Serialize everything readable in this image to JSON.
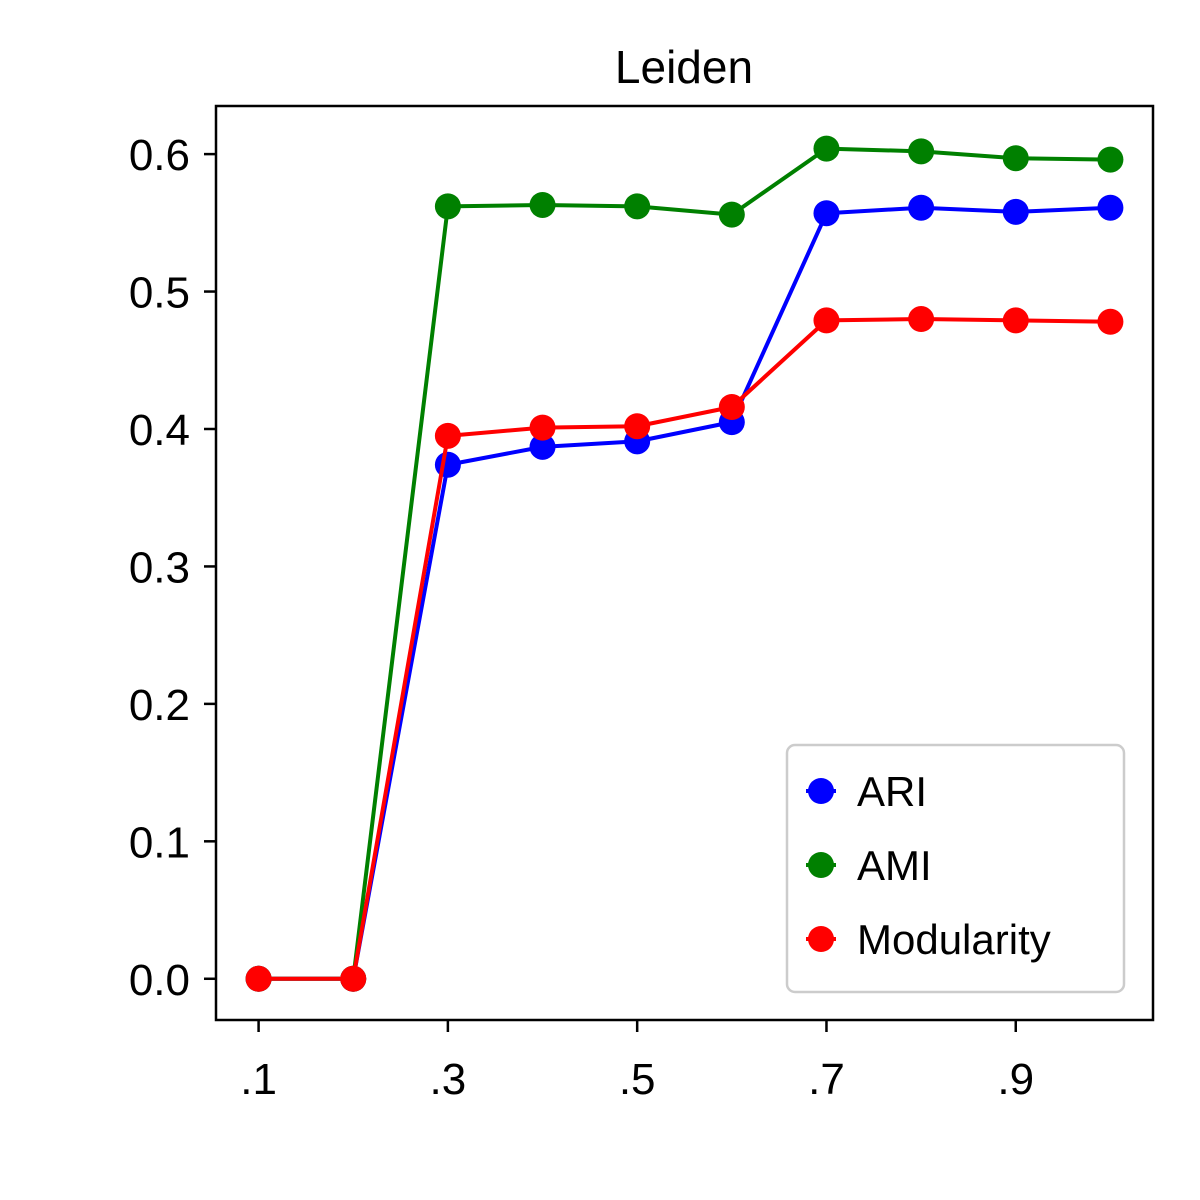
{
  "chart_data": {
    "type": "line",
    "title": "Leiden",
    "xlabel": "",
    "ylabel": "",
    "x": [
      0.1,
      0.2,
      0.3,
      0.4,
      0.5,
      0.6,
      0.7,
      0.8,
      0.9,
      1.0
    ],
    "xlim": [
      0.055,
      1.045
    ],
    "ylim": [
      -0.03,
      0.635
    ],
    "xticks": [
      0.1,
      0.3,
      0.5,
      0.7,
      0.9
    ],
    "xtick_labels": [
      ".1",
      ".3",
      ".5",
      ".7",
      ".9"
    ],
    "yticks": [
      0.0,
      0.1,
      0.2,
      0.3,
      0.4,
      0.5,
      0.6
    ],
    "ytick_labels": [
      "0.0",
      "0.1",
      "0.2",
      "0.3",
      "0.4",
      "0.5",
      "0.6"
    ],
    "grid": false,
    "legend": "lower-right",
    "series": [
      {
        "name": "ARI",
        "color": "#0000ff",
        "values": [
          0.0,
          0.0,
          0.374,
          0.387,
          0.391,
          0.405,
          0.557,
          0.561,
          0.558,
          0.561
        ]
      },
      {
        "name": "AMI",
        "color": "#008000",
        "values": [
          0.0,
          0.0,
          0.562,
          0.563,
          0.562,
          0.556,
          0.604,
          0.602,
          0.597,
          0.596
        ]
      },
      {
        "name": "Modularity",
        "color": "#ff0000",
        "values": [
          0.0,
          0.0,
          0.395,
          0.401,
          0.402,
          0.416,
          0.479,
          0.48,
          0.479,
          0.478
        ]
      }
    ]
  }
}
